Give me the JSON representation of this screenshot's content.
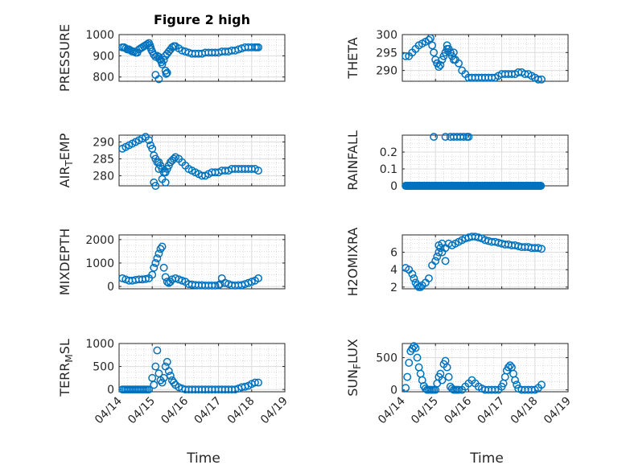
{
  "figure_title": "Figure 2 high",
  "chart_data": [
    {
      "type": "scatter",
      "ylabel": "PRESSURE",
      "xlabel": "",
      "title": "Figure 2 high",
      "xlim": [
        "04/14",
        "04/19"
      ],
      "ylim": [
        780,
        1000
      ],
      "yticks": [
        800,
        900,
        1000
      ],
      "xticks": [
        "04/14",
        "04/15",
        "04/16",
        "04/17",
        "04/18",
        "04/19"
      ],
      "grid": "on",
      "minor_grid": "on",
      "show_xticklabels": false,
      "x": [
        0.1,
        0.15,
        0.2,
        0.25,
        0.3,
        0.35,
        0.4,
        0.45,
        0.5,
        0.55,
        0.6,
        0.65,
        0.7,
        0.75,
        0.8,
        0.85,
        0.9,
        0.93,
        0.95,
        0.97,
        1.0,
        1.05,
        1.1,
        1.15,
        1.2,
        1.22,
        1.25,
        1.28,
        1.3,
        1.35,
        1.4,
        1.45,
        1.5,
        1.55,
        1.6,
        1.65,
        1.7,
        1.8,
        1.9,
        2.0,
        2.1,
        2.2,
        2.3,
        2.4,
        2.5,
        2.6,
        2.7,
        2.8,
        2.9,
        3.0,
        3.1,
        3.2,
        3.3,
        3.4,
        3.5,
        3.6,
        3.7,
        3.8,
        3.9,
        4.0,
        4.1,
        4.15,
        4.2
      ],
      "y": [
        940,
        940,
        935,
        930,
        930,
        925,
        920,
        920,
        915,
        915,
        930,
        935,
        940,
        945,
        950,
        955,
        960,
        950,
        940,
        930,
        920,
        905,
        895,
        900,
        895,
        885,
        880,
        870,
        860,
        880,
        900,
        910,
        920,
        930,
        940,
        945,
        945,
        935,
        925,
        920,
        915,
        910,
        910,
        910,
        910,
        915,
        915,
        915,
        915,
        915,
        920,
        920,
        920,
        925,
        925,
        930,
        935,
        940,
        940,
        940,
        940,
        940,
        940
      ],
      "outliers_x": [
        1.1,
        1.2,
        1.4,
        1.45,
        1.42
      ],
      "outliers_y": [
        810,
        790,
        830,
        820,
        815
      ]
    },
    {
      "type": "scatter",
      "ylabel": "THETA",
      "xlabel": "",
      "xlim": [
        "04/14",
        "04/19"
      ],
      "ylim": [
        287,
        300
      ],
      "yticks": [
        290,
        295,
        300
      ],
      "xticks": [
        "04/14",
        "04/15",
        "04/16",
        "04/17",
        "04/18",
        "04/19"
      ],
      "grid": "on",
      "minor_grid": "on",
      "show_xticklabels": false,
      "x": [
        0.1,
        0.2,
        0.3,
        0.4,
        0.5,
        0.6,
        0.7,
        0.8,
        0.85,
        0.9,
        0.95,
        1.0,
        1.05,
        1.1,
        1.15,
        1.2,
        1.25,
        1.3,
        1.35,
        1.4,
        1.45,
        1.5,
        1.55,
        1.6,
        1.7,
        1.8,
        1.9,
        2.0,
        2.1,
        2.2,
        2.3,
        2.4,
        2.5,
        2.6,
        2.7,
        2.8,
        2.9,
        3.0,
        3.1,
        3.2,
        3.3,
        3.4,
        3.5,
        3.6,
        3.7,
        3.8,
        3.9,
        4.0,
        4.1,
        4.2
      ],
      "y": [
        294,
        294,
        295,
        296,
        297,
        297.5,
        298,
        298.5,
        299,
        297,
        295,
        293,
        292,
        291,
        291.5,
        293,
        294,
        295,
        296,
        296,
        295,
        294,
        293,
        293,
        292,
        290,
        289,
        288,
        288,
        288,
        288,
        288,
        288,
        288,
        288,
        288,
        288.5,
        289,
        289,
        289,
        289,
        289,
        289.5,
        289.5,
        289,
        289,
        288.5,
        288,
        287.5,
        287.5
      ],
      "outliers_x": [
        1.35,
        1.55,
        1.05
      ],
      "outliers_y": [
        297,
        295,
        292
      ]
    },
    {
      "type": "scatter",
      "ylabel": "AIR_TEMP",
      "xlabel": "",
      "xlim": [
        "04/14",
        "04/19"
      ],
      "ylim": [
        277,
        292
      ],
      "yticks": [
        280,
        285,
        290
      ],
      "xticks": [
        "04/14",
        "04/15",
        "04/16",
        "04/17",
        "04/18",
        "04/19"
      ],
      "grid": "on",
      "minor_grid": "on",
      "show_xticklabels": false,
      "x": [
        0.1,
        0.2,
        0.3,
        0.4,
        0.5,
        0.6,
        0.7,
        0.8,
        0.9,
        0.95,
        1.0,
        1.05,
        1.1,
        1.15,
        1.2,
        1.25,
        1.3,
        1.35,
        1.4,
        1.45,
        1.5,
        1.55,
        1.6,
        1.65,
        1.7,
        1.8,
        1.9,
        2.0,
        2.1,
        2.2,
        2.3,
        2.4,
        2.5,
        2.6,
        2.7,
        2.8,
        2.9,
        3.0,
        3.1,
        3.2,
        3.3,
        3.4,
        3.5,
        3.6,
        3.7,
        3.8,
        3.9,
        4.0,
        4.1,
        4.2
      ],
      "y": [
        288,
        288.5,
        289,
        289.5,
        290,
        290.5,
        291,
        291.5,
        290.5,
        289,
        288,
        286,
        285,
        284,
        284,
        283,
        282,
        281,
        281,
        282,
        283,
        284,
        284.5,
        285,
        285.5,
        285,
        284,
        283,
        282,
        281.5,
        281,
        280.5,
        280,
        280,
        280.5,
        281,
        281,
        281,
        281.5,
        281.5,
        281.5,
        282,
        282,
        282,
        282,
        282,
        282,
        282,
        282,
        281.5
      ],
      "outliers_x": [
        1.05,
        1.1,
        1.3,
        1.4,
        1.2
      ],
      "outliers_y": [
        278,
        277,
        279,
        278,
        282
      ]
    },
    {
      "type": "scatter",
      "ylabel": "RAINFALL",
      "xlabel": "",
      "xlim": [
        "04/14",
        "04/19"
      ],
      "ylim": [
        0,
        0.3
      ],
      "yticks": [
        0,
        0.1,
        0.2
      ],
      "xticks": [
        "04/14",
        "04/15",
        "04/16",
        "04/17",
        "04/18",
        "04/19"
      ],
      "grid": "on",
      "minor_grid": "on",
      "show_xticklabels": false,
      "x_zero_range": [
        0.1,
        4.2
      ],
      "x": [
        0.95,
        1.3,
        1.45,
        1.55,
        1.65,
        1.75,
        1.85,
        1.95,
        2.0
      ],
      "y": [
        0.29,
        0.29,
        0.29,
        0.29,
        0.29,
        0.29,
        0.29,
        0.29,
        0.29
      ]
    },
    {
      "type": "scatter",
      "ylabel": "MIXDEPTH",
      "xlabel": "",
      "xlim": [
        "04/14",
        "04/19"
      ],
      "ylim": [
        -100,
        2200
      ],
      "yticks": [
        0,
        1000,
        2000
      ],
      "xticks": [
        "04/14",
        "04/15",
        "04/16",
        "04/17",
        "04/18",
        "04/19"
      ],
      "grid": "on",
      "minor_grid": "on",
      "show_xticklabels": false,
      "x": [
        0.1,
        0.2,
        0.3,
        0.4,
        0.5,
        0.6,
        0.7,
        0.8,
        0.9,
        1.0,
        1.05,
        1.1,
        1.15,
        1.2,
        1.25,
        1.3,
        1.35,
        1.4,
        1.45,
        1.5,
        1.55,
        1.6,
        1.7,
        1.8,
        1.9,
        2.0,
        2.1,
        2.2,
        2.3,
        2.4,
        2.5,
        2.6,
        2.7,
        2.8,
        2.9,
        3.0,
        3.05,
        3.1,
        3.2,
        3.3,
        3.4,
        3.5,
        3.6,
        3.7,
        3.8,
        3.9,
        4.0,
        4.1,
        4.2
      ],
      "y": [
        350,
        300,
        250,
        250,
        280,
        300,
        300,
        320,
        350,
        500,
        800,
        1000,
        1200,
        1400,
        1600,
        1700,
        800,
        400,
        200,
        150,
        200,
        300,
        350,
        300,
        250,
        200,
        100,
        80,
        60,
        50,
        50,
        40,
        40,
        40,
        40,
        50,
        100,
        350,
        150,
        100,
        50,
        40,
        50,
        60,
        100,
        150,
        200,
        250,
        350
      ]
    },
    {
      "type": "scatter",
      "ylabel": "H2OMIXRA",
      "xlabel": "",
      "xlim": [
        "04/14",
        "04/19"
      ],
      "ylim": [
        1.8,
        8
      ],
      "yticks": [
        2,
        4,
        6
      ],
      "xticks": [
        "04/14",
        "04/15",
        "04/16",
        "04/17",
        "04/18",
        "04/19"
      ],
      "grid": "on",
      "minor_grid": "on",
      "show_xticklabels": false,
      "x": [
        0.1,
        0.2,
        0.3,
        0.35,
        0.4,
        0.45,
        0.5,
        0.55,
        0.6,
        0.7,
        0.8,
        0.9,
        1.0,
        1.05,
        1.1,
        1.15,
        1.2,
        1.3,
        1.4,
        1.5,
        1.6,
        1.7,
        1.8,
        1.9,
        2.0,
        2.1,
        2.2,
        2.3,
        2.4,
        2.5,
        2.6,
        2.7,
        2.8,
        2.9,
        3.0,
        3.1,
        3.2,
        3.3,
        3.4,
        3.5,
        3.6,
        3.7,
        3.8,
        3.9,
        4.0,
        4.1,
        4.2
      ],
      "y": [
        4.2,
        4.0,
        3.5,
        3.0,
        2.5,
        2.2,
        2.0,
        2.0,
        2.2,
        2.5,
        3.0,
        4.5,
        5.0,
        5.5,
        6.0,
        6.5,
        6.0,
        6.5,
        7.0,
        6.8,
        7.0,
        7.2,
        7.4,
        7.6,
        7.7,
        7.8,
        7.8,
        7.7,
        7.6,
        7.4,
        7.3,
        7.2,
        7.2,
        7.1,
        7.0,
        6.9,
        6.9,
        6.8,
        6.8,
        6.7,
        6.6,
        6.6,
        6.6,
        6.5,
        6.5,
        6.5,
        6.4
      ],
      "outliers_x": [
        1.1,
        1.2,
        1.3
      ],
      "outliers_y": [
        6.8,
        7.0,
        5.0
      ]
    },
    {
      "type": "scatter",
      "ylabel": "TERR_MSL",
      "xlabel": "Time",
      "xlim": [
        "04/14",
        "04/19"
      ],
      "ylim": [
        -50,
        1000
      ],
      "yticks": [
        0,
        500,
        1000
      ],
      "xticks": [
        "04/14",
        "04/15",
        "04/16",
        "04/17",
        "04/18",
        "04/19"
      ],
      "grid": "on",
      "minor_grid": "on",
      "show_xticklabels": true,
      "x": [
        0.1,
        0.15,
        0.2,
        0.25,
        0.3,
        0.35,
        0.4,
        0.45,
        0.5,
        0.55,
        0.6,
        0.65,
        0.7,
        0.75,
        0.8,
        0.85,
        0.9,
        1.0,
        1.05,
        1.1,
        1.15,
        1.2,
        1.25,
        1.3,
        1.35,
        1.4,
        1.45,
        1.5,
        1.55,
        1.6,
        1.65,
        1.7,
        1.8,
        1.9,
        2.0,
        2.1,
        2.2,
        2.3,
        2.4,
        2.5,
        2.6,
        2.7,
        2.8,
        2.9,
        3.0,
        3.1,
        3.2,
        3.3,
        3.4,
        3.5,
        3.6,
        3.7,
        3.8,
        3.9,
        4.0,
        4.1,
        4.2
      ],
      "y": [
        0,
        0,
        0,
        0,
        0,
        0,
        0,
        0,
        0,
        0,
        0,
        0,
        0,
        0,
        0,
        0,
        0,
        250,
        100,
        500,
        850,
        350,
        200,
        150,
        250,
        500,
        600,
        400,
        300,
        200,
        150,
        100,
        50,
        20,
        0,
        0,
        0,
        0,
        0,
        0,
        0,
        0,
        0,
        0,
        0,
        0,
        0,
        0,
        0,
        0,
        20,
        50,
        60,
        80,
        120,
        150,
        150
      ]
    },
    {
      "type": "scatter",
      "ylabel": "SUN_FLUX",
      "xlabel": "Time",
      "xlim": [
        "04/14",
        "04/19"
      ],
      "ylim": [
        -30,
        720
      ],
      "yticks": [
        0,
        500
      ],
      "xticks": [
        "04/14",
        "04/15",
        "04/16",
        "04/17",
        "04/18",
        "04/19"
      ],
      "grid": "on",
      "minor_grid": "on",
      "show_xticklabels": true,
      "x": [
        0.1,
        0.15,
        0.2,
        0.25,
        0.3,
        0.35,
        0.4,
        0.45,
        0.5,
        0.55,
        0.6,
        0.65,
        0.7,
        0.75,
        0.8,
        0.85,
        0.9,
        0.95,
        1.0,
        1.05,
        1.1,
        1.15,
        1.2,
        1.25,
        1.3,
        1.35,
        1.4,
        1.45,
        1.5,
        1.55,
        1.6,
        1.65,
        1.7,
        1.8,
        1.9,
        2.0,
        2.1,
        2.2,
        2.3,
        2.4,
        2.5,
        2.6,
        2.7,
        2.8,
        2.9,
        3.0,
        3.05,
        3.1,
        3.15,
        3.2,
        3.25,
        3.3,
        3.35,
        3.4,
        3.45,
        3.5,
        3.6,
        3.7,
        3.8,
        3.9,
        4.0,
        4.1,
        4.2
      ],
      "y": [
        30,
        200,
        420,
        600,
        640,
        680,
        650,
        500,
        350,
        250,
        150,
        60,
        20,
        0,
        0,
        0,
        0,
        0,
        0,
        100,
        200,
        250,
        150,
        400,
        450,
        350,
        200,
        50,
        20,
        0,
        0,
        0,
        0,
        0,
        50,
        100,
        150,
        100,
        50,
        20,
        0,
        0,
        0,
        0,
        0,
        50,
        100,
        200,
        300,
        350,
        380,
        350,
        250,
        150,
        80,
        20,
        0,
        0,
        0,
        0,
        0,
        30,
        80
      ]
    }
  ]
}
